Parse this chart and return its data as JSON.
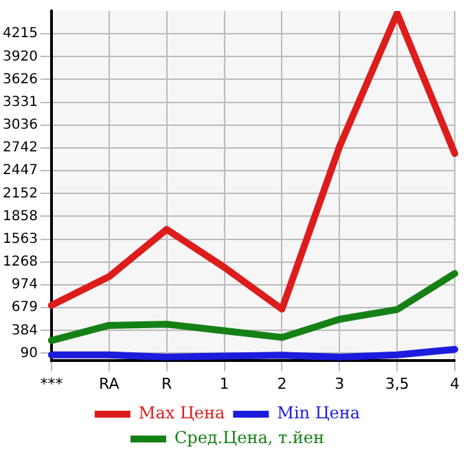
{
  "chart_data": {
    "type": "line",
    "categories": [
      "***",
      "RA",
      "R",
      "1",
      "2",
      "3",
      "3,5",
      "4"
    ],
    "series": [
      {
        "name": "Max Цена",
        "color": "#dd1c1c",
        "values": [
          710,
          1080,
          1690,
          1200,
          660,
          2760,
          4480,
          2670
        ]
      },
      {
        "name": "Min Цена",
        "color": "#1c1cdd",
        "values": [
          70,
          70,
          40,
          55,
          65,
          40,
          70,
          140
        ]
      },
      {
        "name": "Сред.Цена, т.йен",
        "color": "#158015",
        "values": [
          255,
          450,
          465,
          380,
          295,
          530,
          655,
          1120
        ]
      }
    ],
    "ylim": [
      0,
      4510
    ],
    "yticks": [
      90,
      384,
      679,
      974,
      1268,
      1563,
      1858,
      2152,
      2447,
      2742,
      3036,
      3331,
      3626,
      3920,
      4215
    ],
    "grid": true,
    "legend": "bottom",
    "marker": "none",
    "line_style": "solid"
  }
}
